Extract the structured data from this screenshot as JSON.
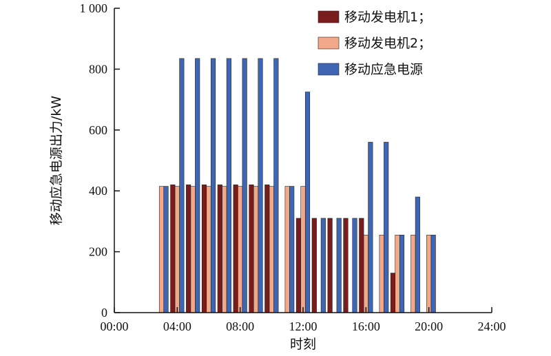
{
  "chart_data": {
    "type": "bar",
    "title": "",
    "xlabel": "时刻",
    "ylabel": "移动应急电源出力/kW",
    "xlim_hours": [
      0,
      24
    ],
    "ylim": [
      0,
      1000
    ],
    "x_ticks": [
      "00:00",
      "04:00",
      "08:00",
      "12:00",
      "16:00",
      "20:00",
      "24:00"
    ],
    "y_ticks": [
      "0",
      "200",
      "400",
      "600",
      "800",
      "1 000"
    ],
    "grid": false,
    "legend_position": "top-right",
    "hours": [
      3,
      4,
      5,
      6,
      7,
      8,
      9,
      10,
      11,
      12,
      13,
      14,
      15,
      16,
      17,
      18,
      19,
      20
    ],
    "series": [
      {
        "name": "移动发电机1；",
        "color": "#7b1c1c",
        "values": [
          0,
          420,
          420,
          420,
          420,
          420,
          420,
          420,
          0,
          310,
          310,
          310,
          310,
          310,
          0,
          130,
          0,
          0
        ]
      },
      {
        "name": "移动发电机2；",
        "color": "#f2a98a",
        "values": [
          415,
          415,
          415,
          415,
          415,
          415,
          415,
          415,
          415,
          415,
          0,
          0,
          0,
          255,
          255,
          255,
          255,
          255
        ]
      },
      {
        "name": "移动应急电源",
        "color": "#3f66b3",
        "values": [
          415,
          835,
          835,
          835,
          835,
          835,
          835,
          835,
          415,
          725,
          310,
          310,
          310,
          560,
          560,
          255,
          380,
          255
        ]
      }
    ]
  }
}
